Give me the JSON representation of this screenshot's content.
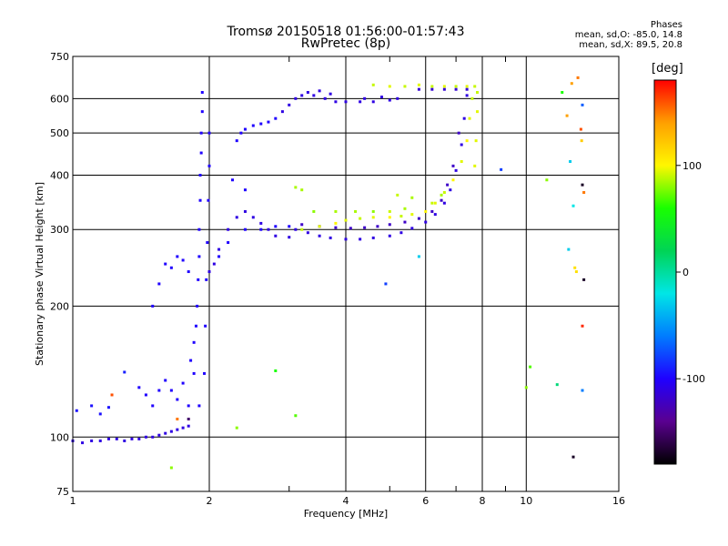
{
  "header": {
    "title_line1": "Tromsø 20150518 01:56:00-01:57:43",
    "title_line2": "RwPretec (8p)"
  },
  "phase_box": {
    "title": "Phases",
    "o_mode": "mean, sd,O: -85.0, 14.8",
    "x_mode": "mean, sd,X:  89.5, 20.8"
  },
  "colorbar": {
    "label": "[deg]",
    "ticks": [
      100,
      0,
      -100
    ],
    "range": [
      -180,
      180
    ],
    "colors": [
      "#000000",
      "#5a0090",
      "#1f00ff",
      "#007cff",
      "#00e6e6",
      "#00d455",
      "#19ff00",
      "#fff700",
      "#ffa000",
      "#ff0000"
    ]
  },
  "chart_data": {
    "type": "scatter",
    "xlabel": "Frequency [MHz]",
    "ylabel": "Stationary phase Virtual Height [km]",
    "x_scale": "log2",
    "y_scale": "log",
    "xlim": [
      1,
      16
    ],
    "ylim": [
      75,
      750
    ],
    "x_ticks": [
      1,
      2,
      4,
      6,
      8,
      10,
      16
    ],
    "x_minor_ticks": [
      3,
      5,
      7,
      9
    ],
    "y_ticks": [
      75,
      100,
      200,
      300,
      400,
      500,
      600,
      750
    ],
    "grid": true,
    "color_by": "phase (deg)",
    "series": [
      {
        "label": "o_trace",
        "points": [
          [
            1.0,
            98,
            -110
          ],
          [
            1.05,
            97,
            -110
          ],
          [
            1.1,
            98,
            -110
          ],
          [
            1.15,
            98,
            -110
          ],
          [
            1.2,
            99,
            -110
          ],
          [
            1.25,
            99,
            -110
          ],
          [
            1.3,
            98,
            -110
          ],
          [
            1.35,
            99,
            -110
          ],
          [
            1.4,
            99,
            -110
          ],
          [
            1.45,
            100,
            -110
          ],
          [
            1.5,
            100,
            -110
          ],
          [
            1.55,
            101,
            -110
          ],
          [
            1.6,
            102,
            -110
          ],
          [
            1.65,
            103,
            -110
          ],
          [
            1.7,
            104,
            -110
          ],
          [
            1.75,
            105,
            -110
          ],
          [
            1.8,
            106,
            -110
          ],
          [
            1.02,
            115,
            -95
          ],
          [
            1.1,
            118,
            -95
          ],
          [
            1.15,
            113,
            -95
          ],
          [
            1.2,
            117,
            -95
          ],
          [
            1.3,
            141,
            -90
          ],
          [
            1.4,
            130,
            -100
          ],
          [
            1.45,
            125,
            -100
          ],
          [
            1.5,
            118,
            -100
          ],
          [
            1.55,
            128,
            -100
          ],
          [
            1.6,
            135,
            -100
          ],
          [
            1.65,
            128,
            -100
          ],
          [
            1.7,
            122,
            -100
          ],
          [
            1.75,
            133,
            -100
          ],
          [
            1.8,
            118,
            -100
          ],
          [
            1.85,
            140,
            -100
          ],
          [
            1.9,
            118,
            -100
          ],
          [
            1.82,
            150,
            -100
          ],
          [
            1.85,
            165,
            -100
          ],
          [
            1.87,
            180,
            -100
          ],
          [
            1.88,
            200,
            -100
          ],
          [
            1.89,
            230,
            -100
          ],
          [
            1.9,
            260,
            -100
          ],
          [
            1.9,
            300,
            -100
          ],
          [
            1.91,
            350,
            -100
          ],
          [
            1.91,
            400,
            -100
          ],
          [
            1.92,
            450,
            -100
          ],
          [
            1.92,
            500,
            -100
          ],
          [
            1.93,
            560,
            -100
          ],
          [
            1.93,
            620,
            -100
          ],
          [
            1.95,
            140,
            -100
          ],
          [
            1.96,
            180,
            -100
          ],
          [
            1.97,
            230,
            -100
          ],
          [
            1.98,
            280,
            -100
          ],
          [
            1.99,
            350,
            -100
          ],
          [
            2.0,
            420,
            -100
          ],
          [
            2.0,
            500,
            -100
          ],
          [
            1.5,
            200,
            -100
          ],
          [
            1.55,
            225,
            -100
          ],
          [
            1.6,
            250,
            -100
          ],
          [
            1.65,
            245,
            -100
          ],
          [
            1.7,
            260,
            -100
          ],
          [
            1.75,
            255,
            -100
          ],
          [
            1.8,
            240,
            -100
          ],
          [
            2.0,
            240,
            -110
          ],
          [
            2.05,
            250,
            -110
          ],
          [
            2.1,
            270,
            -110
          ],
          [
            2.2,
            300,
            -110
          ],
          [
            2.3,
            320,
            -110
          ],
          [
            2.4,
            330,
            -110
          ],
          [
            2.5,
            320,
            -110
          ],
          [
            2.6,
            310,
            -110
          ],
          [
            2.7,
            300,
            -110
          ],
          [
            2.8,
            290,
            -110
          ],
          [
            3.0,
            288,
            -110
          ],
          [
            2.1,
            260,
            -100
          ],
          [
            2.2,
            280,
            -100
          ],
          [
            2.4,
            300,
            -100
          ],
          [
            2.6,
            300,
            -100
          ],
          [
            2.8,
            305,
            -100
          ],
          [
            3.0,
            305,
            -100
          ],
          [
            3.1,
            300,
            -110
          ],
          [
            3.3,
            295,
            -110
          ],
          [
            3.5,
            290,
            -110
          ],
          [
            3.7,
            287,
            -110
          ],
          [
            4.0,
            285,
            -110
          ],
          [
            4.3,
            285,
            -110
          ],
          [
            4.6,
            287,
            -110
          ],
          [
            5.0,
            290,
            -110
          ],
          [
            5.3,
            295,
            -110
          ],
          [
            5.6,
            302,
            -110
          ],
          [
            6.0,
            312,
            -110
          ],
          [
            6.3,
            325,
            -110
          ],
          [
            6.6,
            345,
            -110
          ],
          [
            6.8,
            370,
            -110
          ],
          [
            7.0,
            410,
            -110
          ],
          [
            7.2,
            470,
            -110
          ],
          [
            7.3,
            540,
            -110
          ],
          [
            7.4,
            610,
            -110
          ],
          [
            3.2,
            308,
            -120
          ],
          [
            3.5,
            305,
            -120
          ],
          [
            3.8,
            303,
            -120
          ],
          [
            4.1,
            302,
            -120
          ],
          [
            4.4,
            303,
            -120
          ],
          [
            4.7,
            305,
            -120
          ],
          [
            5.0,
            308,
            -120
          ],
          [
            5.4,
            312,
            -120
          ],
          [
            5.8,
            318,
            -120
          ],
          [
            6.2,
            330,
            -120
          ],
          [
            6.5,
            350,
            -120
          ],
          [
            6.7,
            380,
            -120
          ],
          [
            6.9,
            420,
            -120
          ],
          [
            7.1,
            500,
            -120
          ],
          [
            2.3,
            480,
            -100
          ],
          [
            2.35,
            500,
            -100
          ],
          [
            2.4,
            510,
            -100
          ],
          [
            2.5,
            520,
            -100
          ],
          [
            2.6,
            525,
            -100
          ],
          [
            2.7,
            530,
            -100
          ],
          [
            2.8,
            540,
            -100
          ],
          [
            2.9,
            560,
            -110
          ],
          [
            3.0,
            580,
            -110
          ],
          [
            3.1,
            600,
            -110
          ],
          [
            3.2,
            610,
            -110
          ],
          [
            3.4,
            610,
            -110
          ],
          [
            3.6,
            600,
            -110
          ],
          [
            3.8,
            590,
            -110
          ],
          [
            4.0,
            590,
            -110
          ],
          [
            4.3,
            590,
            -110
          ],
          [
            4.6,
            590,
            -110
          ],
          [
            5.0,
            595,
            -110
          ],
          [
            3.3,
            620,
            -110
          ],
          [
            3.5,
            625,
            -110
          ],
          [
            3.7,
            615,
            -110
          ],
          [
            4.4,
            600,
            -110
          ],
          [
            4.8,
            605,
            -110
          ],
          [
            5.2,
            600,
            -110
          ],
          [
            5.8,
            630,
            -115
          ],
          [
            6.2,
            630,
            -115
          ],
          [
            6.6,
            630,
            -115
          ],
          [
            7.0,
            630,
            -115
          ],
          [
            7.4,
            630,
            -115
          ],
          [
            2.25,
            390,
            -100
          ],
          [
            2.4,
            370,
            -100
          ]
        ]
      },
      {
        "label": "x_trace",
        "points": [
          [
            3.2,
            300,
            90
          ],
          [
            3.5,
            305,
            95
          ],
          [
            3.8,
            310,
            100
          ],
          [
            4.0,
            315,
            95
          ],
          [
            4.3,
            318,
            90
          ],
          [
            4.6,
            320,
            95
          ],
          [
            5.0,
            320,
            100
          ],
          [
            5.3,
            322,
            90
          ],
          [
            5.6,
            325,
            95
          ],
          [
            6.0,
            330,
            100
          ],
          [
            6.3,
            345,
            95
          ],
          [
            6.6,
            365,
            90
          ],
          [
            6.9,
            390,
            100
          ],
          [
            7.2,
            430,
            95
          ],
          [
            7.4,
            480,
            100
          ],
          [
            7.5,
            540,
            95
          ],
          [
            7.6,
            600,
            90
          ],
          [
            3.4,
            330,
            80
          ],
          [
            3.8,
            330,
            85
          ],
          [
            4.2,
            330,
            85
          ],
          [
            4.6,
            330,
            80
          ],
          [
            5.0,
            330,
            90
          ],
          [
            5.4,
            335,
            85
          ],
          [
            3.1,
            375,
            85
          ],
          [
            3.2,
            370,
            85
          ],
          [
            5.2,
            360,
            90
          ],
          [
            5.6,
            355,
            85
          ],
          [
            6.2,
            345,
            90
          ],
          [
            6.5,
            360,
            85
          ],
          [
            4.6,
            645,
            90
          ],
          [
            5.0,
            640,
            95
          ],
          [
            5.4,
            640,
            90
          ],
          [
            5.8,
            645,
            95
          ],
          [
            6.2,
            640,
            90
          ],
          [
            6.6,
            640,
            95
          ],
          [
            7.0,
            640,
            90
          ],
          [
            7.4,
            640,
            95
          ],
          [
            7.7,
            640,
            90
          ],
          [
            7.7,
            420,
            95
          ],
          [
            7.75,
            480,
            95
          ],
          [
            7.8,
            560,
            95
          ],
          [
            7.8,
            620,
            90
          ],
          [
            1.65,
            85,
            80
          ],
          [
            2.3,
            105,
            80
          ],
          [
            2.8,
            142,
            60
          ],
          [
            3.1,
            112,
            70
          ],
          [
            10.0,
            130,
            80
          ],
          [
            10.2,
            145,
            70
          ],
          [
            11.1,
            390,
            80
          ],
          [
            12.0,
            620,
            60
          ]
        ]
      },
      {
        "label": "outliers",
        "points": [
          [
            1.22,
            125,
            160
          ],
          [
            1.7,
            110,
            150
          ],
          [
            1.8,
            110,
            -150
          ],
          [
            12.3,
            548,
            140
          ],
          [
            12.6,
            650,
            140
          ],
          [
            13.3,
            580,
            -70
          ],
          [
            12.5,
            430,
            -30
          ],
          [
            12.7,
            340,
            -20
          ],
          [
            12.4,
            270,
            -30
          ],
          [
            12.8,
            245,
            110
          ],
          [
            12.9,
            240,
            110
          ],
          [
            13.0,
            670,
            150
          ],
          [
            13.2,
            510,
            160
          ],
          [
            13.25,
            480,
            120
          ],
          [
            13.3,
            380,
            -170
          ],
          [
            13.4,
            365,
            150
          ],
          [
            13.4,
            230,
            -170
          ],
          [
            13.3,
            180,
            170
          ],
          [
            13.3,
            128,
            -60
          ],
          [
            12.7,
            90,
            -170
          ],
          [
            8.8,
            412,
            -80
          ],
          [
            5.8,
            260,
            -30
          ],
          [
            4.9,
            225,
            -80
          ],
          [
            11.7,
            132,
            10
          ]
        ]
      }
    ]
  }
}
